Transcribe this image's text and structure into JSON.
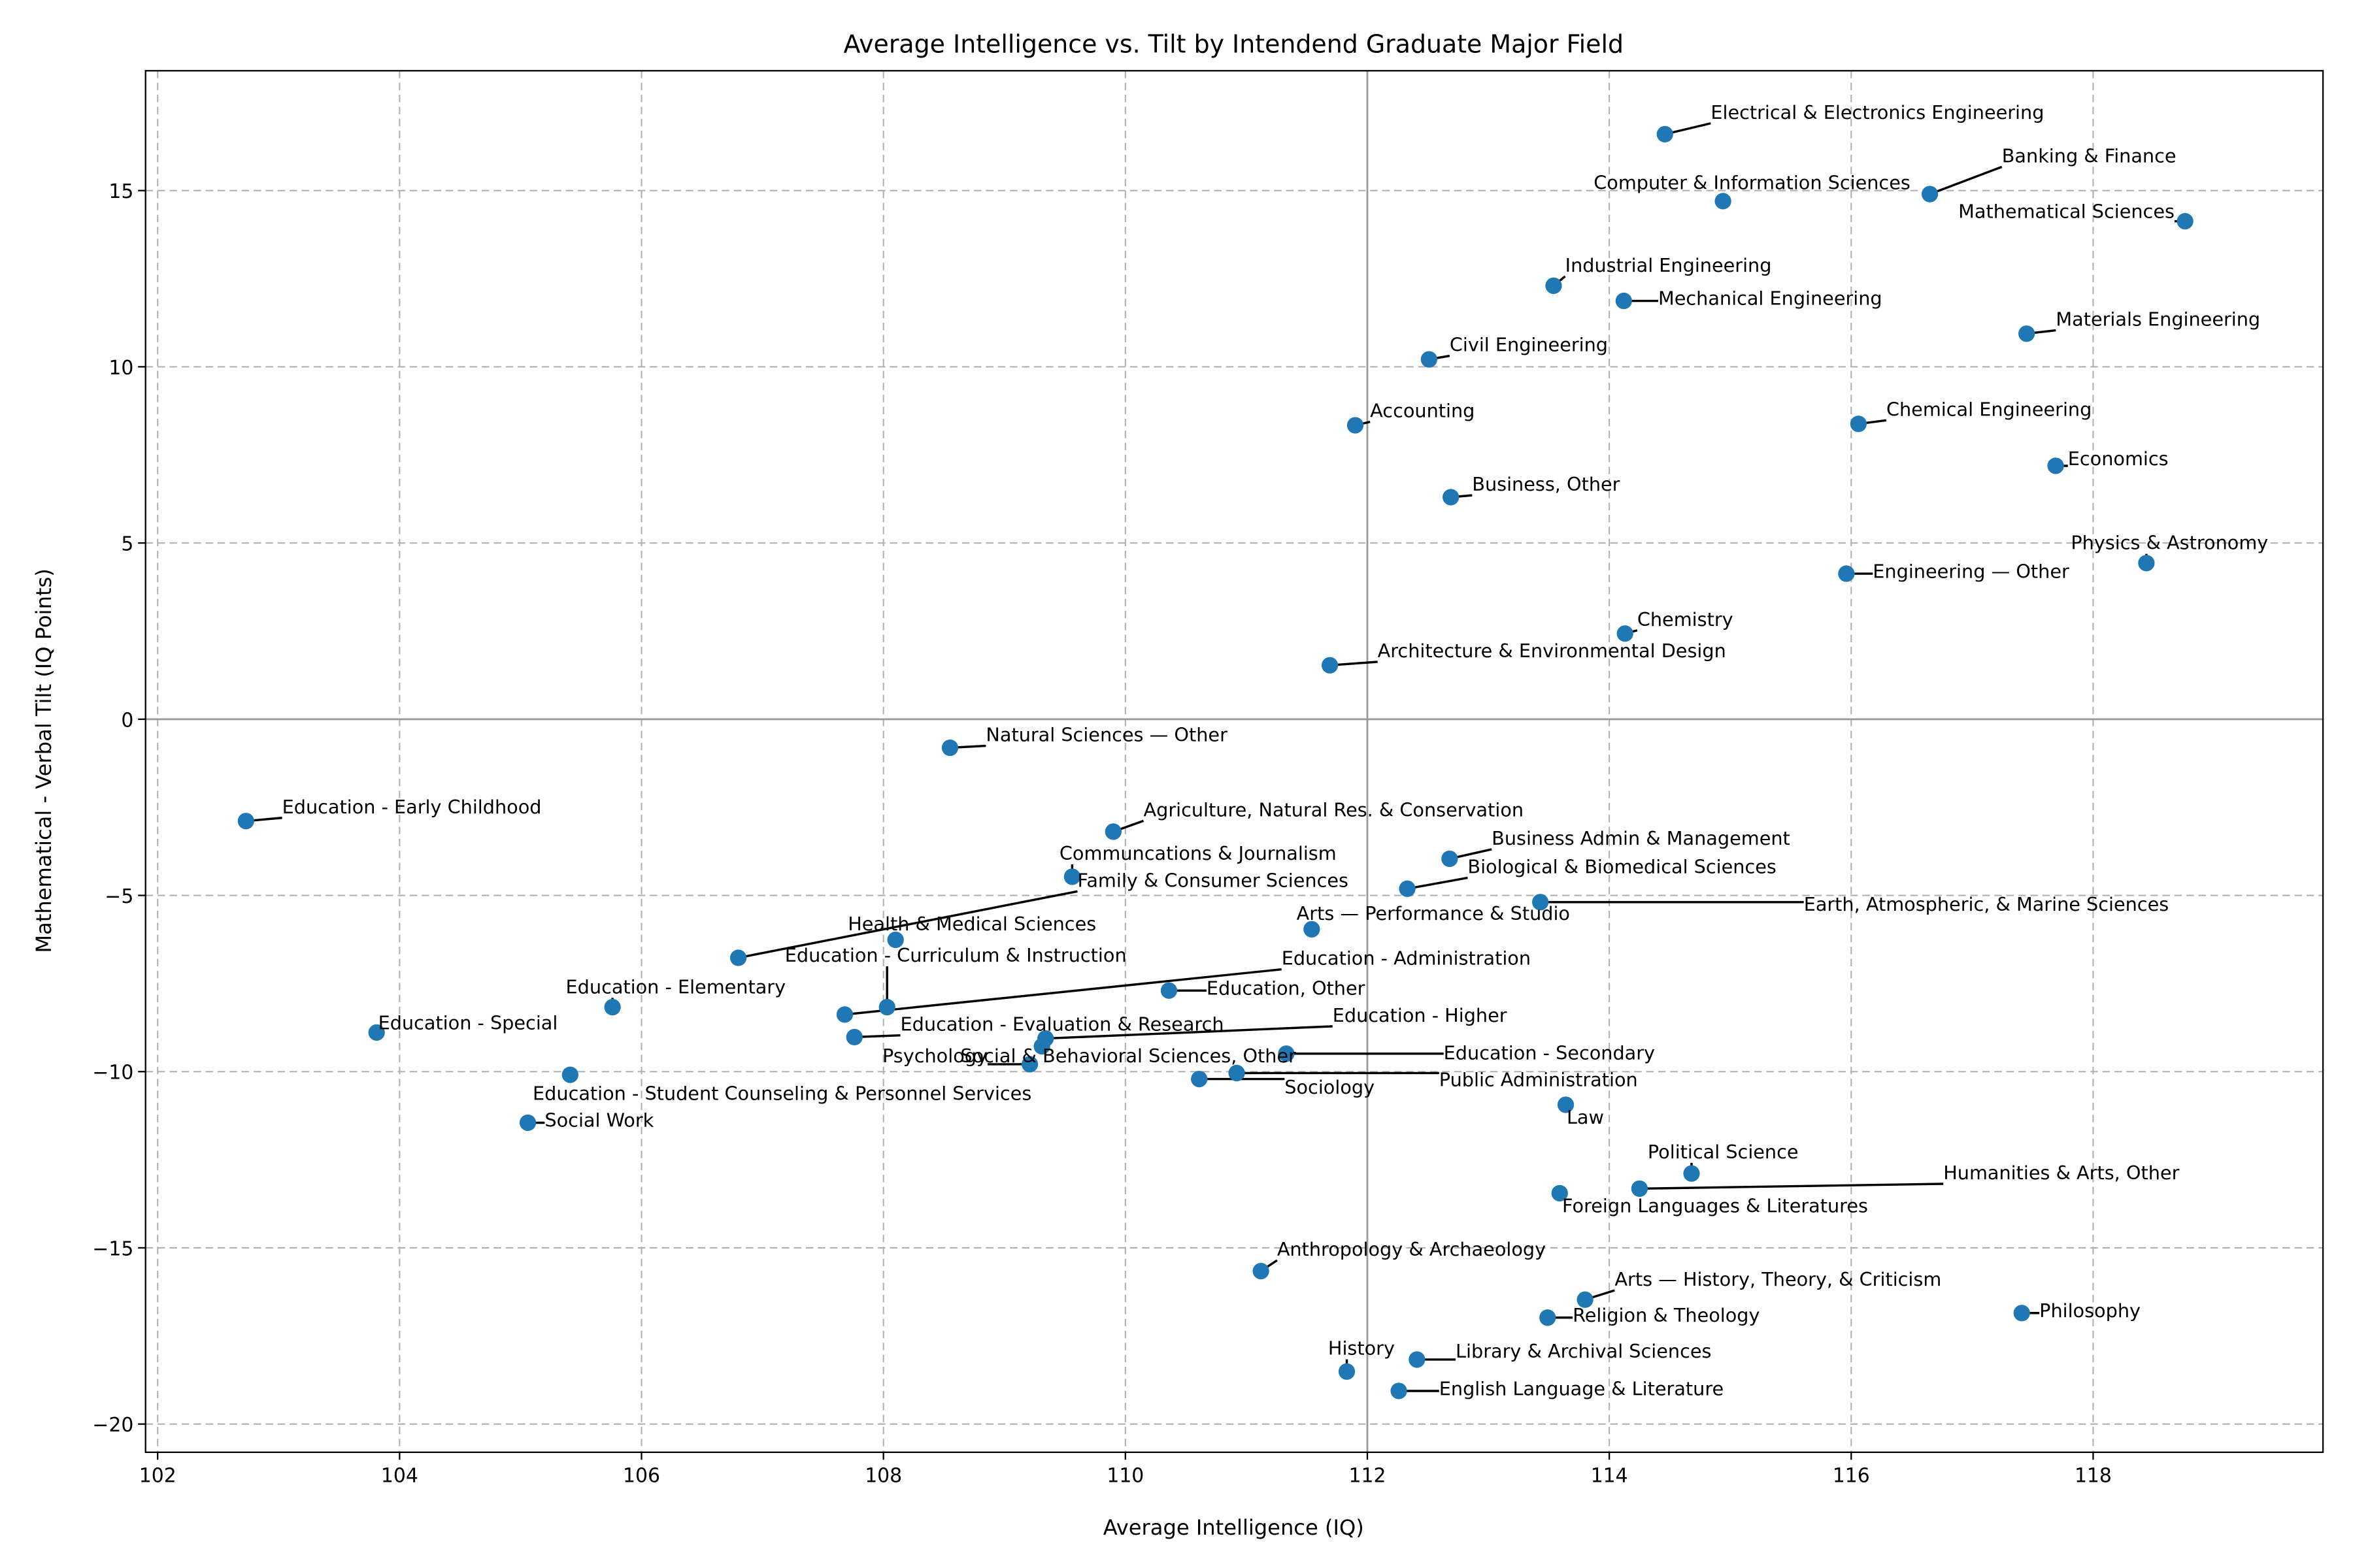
{
  "chart_data": {
    "type": "scatter",
    "title": "Average Intelligence vs. Tilt by Intendend Graduate Major Field",
    "xlabel": "Average Intelligence (IQ)",
    "ylabel": "Mathematical - Verbal Tilt (IQ Points)",
    "xlim": [
      101.9,
      119.9
    ],
    "ylim": [
      -20.8,
      18.4
    ],
    "xticks": [
      102,
      104,
      106,
      108,
      110,
      112,
      114,
      116,
      118
    ],
    "yticks": [
      15,
      10,
      5,
      0,
      -5,
      -10,
      -15,
      -20
    ],
    "ytick_labels": [
      "15",
      "10",
      "5",
      "0",
      "−5",
      "−10",
      "−15",
      "−20"
    ],
    "reference_lines": {
      "x": 112,
      "y": 0
    },
    "grid": true,
    "point_color": "#1f77b4",
    "points": [
      {
        "name": "Electrical & Electronics Engineering",
        "x": 114.46,
        "y": 16.6
      },
      {
        "name": "Banking & Finance",
        "x": 116.65,
        "y": 14.9
      },
      {
        "name": "Computer & Information Sciences",
        "x": 114.94,
        "y": 14.7
      },
      {
        "name": "Mathematical Sciences",
        "x": 118.76,
        "y": 14.13
      },
      {
        "name": "Industrial Engineering",
        "x": 113.54,
        "y": 12.3
      },
      {
        "name": "Mechanical Engineering",
        "x": 114.12,
        "y": 11.87
      },
      {
        "name": "Materials Engineering",
        "x": 117.45,
        "y": 10.94
      },
      {
        "name": "Civil Engineering",
        "x": 112.51,
        "y": 10.21
      },
      {
        "name": "Accounting",
        "x": 111.9,
        "y": 8.34
      },
      {
        "name": "Chemical Engineering",
        "x": 116.06,
        "y": 8.38
      },
      {
        "name": "Economics",
        "x": 117.69,
        "y": 7.19
      },
      {
        "name": "Business, Other",
        "x": 112.69,
        "y": 6.3
      },
      {
        "name": "Physics & Astronomy",
        "x": 118.44,
        "y": 4.43
      },
      {
        "name": "Engineering — Other",
        "x": 115.96,
        "y": 4.13
      },
      {
        "name": "Chemistry",
        "x": 114.13,
        "y": 2.43
      },
      {
        "name": "Architecture & Environmental Design",
        "x": 111.69,
        "y": 1.53
      },
      {
        "name": "Natural Sciences — Other",
        "x": 108.55,
        "y": -0.81
      },
      {
        "name": "Education - Early Childhood",
        "x": 102.73,
        "y": -2.89
      },
      {
        "name": "Agriculture, Natural Res. & Conservation",
        "x": 109.9,
        "y": -3.19
      },
      {
        "name": "Business Admin & Management",
        "x": 112.68,
        "y": -3.96
      },
      {
        "name": "Communcations & Journalism",
        "x": 109.56,
        "y": -4.47
      },
      {
        "name": "Biological & Biomedical Sciences",
        "x": 112.33,
        "y": -4.81
      },
      {
        "name": "Family & Consumer Sciences",
        "x": 106.8,
        "y": -6.77
      },
      {
        "name": "Health & Medical Sciences",
        "x": 108.1,
        "y": -6.26
      },
      {
        "name": "Arts — Performance & Studio",
        "x": 111.54,
        "y": -5.96
      },
      {
        "name": "Earth, Atmospheric, & Marine Sciences",
        "x": 113.43,
        "y": -5.19
      },
      {
        "name": "Education - Curriculum & Instruction",
        "x": 108.03,
        "y": -8.17
      },
      {
        "name": "Education - Elementary",
        "x": 105.76,
        "y": -8.17
      },
      {
        "name": "Education - Administration",
        "x": 107.68,
        "y": -8.38
      },
      {
        "name": "Education, Other",
        "x": 110.36,
        "y": -7.7
      },
      {
        "name": "Education - Special",
        "x": 103.81,
        "y": -8.89
      },
      {
        "name": "Education - Evaluation & Research",
        "x": 107.76,
        "y": -9.02
      },
      {
        "name": "Education - Higher",
        "x": 109.34,
        "y": -9.06
      },
      {
        "name": "Social & Behavioral Sciences, Other",
        "x": 109.31,
        "y": -9.28
      },
      {
        "name": "Psychology",
        "x": 109.21,
        "y": -9.79
      },
      {
        "name": "Education - Secondary",
        "x": 111.33,
        "y": -9.49
      },
      {
        "name": "Education - Student Counseling & Personnel Services",
        "x": 105.41,
        "y": -10.09
      },
      {
        "name": "Public Administration",
        "x": 110.92,
        "y": -10.04
      },
      {
        "name": "Sociology",
        "x": 110.61,
        "y": -10.21
      },
      {
        "name": "Social Work",
        "x": 105.06,
        "y": -11.45
      },
      {
        "name": "Law",
        "x": 113.64,
        "y": -10.94
      },
      {
        "name": "Political Science",
        "x": 114.68,
        "y": -12.89
      },
      {
        "name": "Humanities & Arts, Other",
        "x": 114.25,
        "y": -13.32
      },
      {
        "name": "Foreign Languages & Literatures",
        "x": 113.59,
        "y": -13.45
      },
      {
        "name": "Anthropology & Archaeology",
        "x": 111.12,
        "y": -15.66
      },
      {
        "name": "Arts — History, Theory, & Criticism",
        "x": 113.8,
        "y": -16.47
      },
      {
        "name": "Religion & Theology",
        "x": 113.49,
        "y": -16.98
      },
      {
        "name": "Philosophy",
        "x": 117.41,
        "y": -16.85
      },
      {
        "name": "History",
        "x": 111.83,
        "y": -18.51
      },
      {
        "name": "Library & Archival Sciences",
        "x": 112.41,
        "y": -18.17
      },
      {
        "name": "English Language & Literature",
        "x": 112.26,
        "y": -19.06
      }
    ]
  }
}
